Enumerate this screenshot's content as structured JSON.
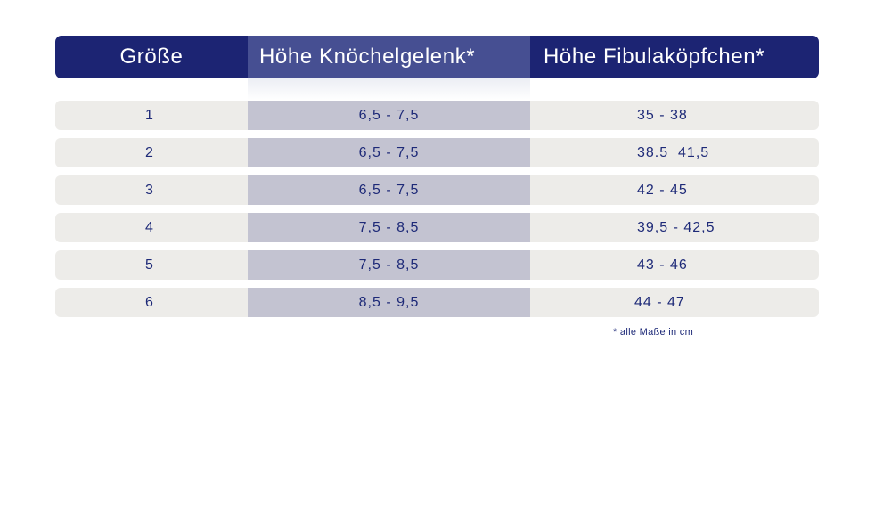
{
  "header": {
    "size_label": "Größe",
    "ankle_label": "Höhe Knöchelgelenk*",
    "fibula_label": "Höhe Fibulaköpfchen*"
  },
  "rows": [
    {
      "size": "1",
      "ankle": "6,5 - 7,5",
      "fibula": "35 - 38"
    },
    {
      "size": "2",
      "ankle": "6,5 - 7,5",
      "fibula": "38.5  41,5"
    },
    {
      "size": "3",
      "ankle": "6,5 - 7,5",
      "fibula": "42 - 45"
    },
    {
      "size": "4",
      "ankle": "7,5 - 8,5",
      "fibula": "39,5 - 42,5"
    },
    {
      "size": "5",
      "ankle": "7,5 - 8,5",
      "fibula": "43 - 46"
    },
    {
      "size": "6",
      "ankle": "8,5 - 9,5",
      "fibula": "44 - 47"
    }
  ],
  "footnote": "* alle Maße in cm",
  "colors": {
    "header_bg": "#1c2473",
    "header_highlight": "#464f92",
    "row_bg": "#edece9",
    "row_highlight": "#c3c3d1",
    "text": "#1e2a78"
  }
}
